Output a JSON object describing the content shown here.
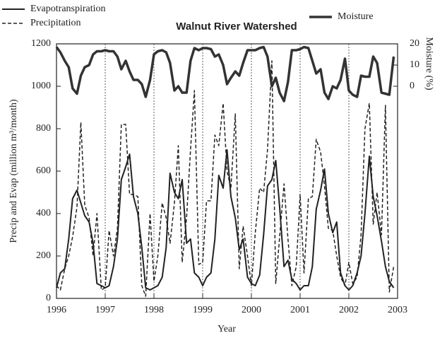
{
  "chart_data": {
    "type": "line",
    "title": "Walnut River Watershed",
    "xlabel": "Year",
    "ylabel": "Precip and Evap (million m³/month)",
    "y2label": "Moisture (%)",
    "xlim": [
      1996,
      2003
    ],
    "xticks": [
      1996,
      1997,
      1998,
      1999,
      2000,
      2001,
      2002,
      2003
    ],
    "ylim": [
      0,
      1200
    ],
    "yticks": [
      0,
      200,
      400,
      600,
      800,
      1000,
      1200
    ],
    "y2lim": [
      -100,
      20
    ],
    "y2ticks": [
      0,
      10,
      20
    ],
    "grid": "x-dashed",
    "x": [
      1996,
      1996.08,
      1996.17,
      1996.25,
      1996.33,
      1996.42,
      1996.5,
      1996.58,
      1996.67,
      1996.75,
      1996.83,
      1996.92,
      1997,
      1997.08,
      1997.17,
      1997.25,
      1997.33,
      1997.42,
      1997.5,
      1997.58,
      1997.67,
      1997.75,
      1997.83,
      1997.92,
      1998,
      1998.08,
      1998.17,
      1998.25,
      1998.33,
      1998.42,
      1998.5,
      1998.58,
      1998.67,
      1998.75,
      1998.83,
      1998.92,
      1999,
      1999.08,
      1999.17,
      1999.25,
      1999.33,
      1999.42,
      1999.5,
      1999.58,
      1999.67,
      1999.75,
      1999.83,
      1999.92,
      2000,
      2000.08,
      2000.17,
      2000.25,
      2000.33,
      2000.42,
      2000.5,
      2000.58,
      2000.67,
      2000.75,
      2000.83,
      2000.92,
      2001,
      2001.08,
      2001.17,
      2001.25,
      2001.33,
      2001.42,
      2001.5,
      2001.58,
      2001.67,
      2001.75,
      2001.83,
      2001.92,
      2002,
      2002.08,
      2002.17,
      2002.25,
      2002.33,
      2002.42,
      2002.5,
      2002.58,
      2002.67,
      2002.75,
      2002.83,
      2002.92
    ],
    "series": [
      {
        "name": "Evapotranspiration",
        "color": "#222222",
        "linestyle": "solid",
        "width": 2,
        "values": [
          50,
          120,
          140,
          280,
          470,
          510,
          450,
          390,
          360,
          260,
          70,
          60,
          50,
          60,
          150,
          280,
          560,
          620,
          680,
          480,
          400,
          240,
          50,
          40,
          50,
          60,
          100,
          240,
          590,
          500,
          470,
          560,
          260,
          280,
          120,
          100,
          60,
          100,
          120,
          280,
          580,
          520,
          700,
          480,
          380,
          230,
          280,
          100,
          70,
          60,
          110,
          300,
          530,
          560,
          650,
          430,
          150,
          180,
          90,
          70,
          40,
          60,
          60,
          150,
          420,
          510,
          610,
          400,
          310,
          360,
          120,
          60,
          40,
          60,
          120,
          200,
          400,
          670,
          480,
          390,
          270,
          150,
          80,
          50
        ]
      },
      {
        "name": "Precipitation",
        "color": "#222222",
        "linestyle": "dashed",
        "width": 1.5,
        "values": [
          60,
          40,
          140,
          200,
          290,
          430,
          830,
          440,
          380,
          200,
          400,
          40,
          50,
          320,
          200,
          330,
          820,
          820,
          490,
          490,
          480,
          60,
          10,
          400,
          80,
          200,
          450,
          380,
          260,
          450,
          720,
          170,
          380,
          700,
          980,
          160,
          170,
          460,
          460,
          770,
          720,
          920,
          600,
          520,
          870,
          140,
          340,
          200,
          60,
          310,
          520,
          500,
          700,
          1120,
          70,
          290,
          540,
          280,
          60,
          150,
          490,
          120,
          470,
          480,
          750,
          690,
          530,
          330,
          320,
          200,
          100,
          60,
          170,
          70,
          100,
          300,
          800,
          920,
          350,
          500,
          300,
          910,
          30,
          150
        ]
      },
      {
        "name": "Moisture",
        "color": "#333333",
        "linestyle": "solid",
        "width": 3.5,
        "axis": "y2",
        "values": [
          18.5,
          16,
          12,
          9,
          -1,
          -3.5,
          5,
          9,
          10,
          15,
          16.5,
          16.5,
          17,
          16.5,
          16.5,
          14,
          8,
          12,
          7,
          3,
          3,
          1,
          -5,
          3,
          15,
          16.5,
          17,
          16,
          11,
          -2,
          0,
          -3,
          -3,
          12,
          18,
          17,
          18,
          18,
          17.5,
          14,
          15,
          10,
          1,
          4,
          7,
          5,
          11,
          17,
          17,
          17,
          18,
          18.5,
          14,
          0,
          4,
          -3,
          -7,
          2,
          17,
          17,
          17.5,
          18.5,
          18,
          12,
          6,
          8,
          -3,
          -6,
          0,
          -1,
          3,
          13,
          -2,
          -4,
          -5,
          5,
          4.5,
          4.5,
          14,
          11,
          -3,
          -3.5,
          -4,
          14
        ]
      }
    ]
  }
}
